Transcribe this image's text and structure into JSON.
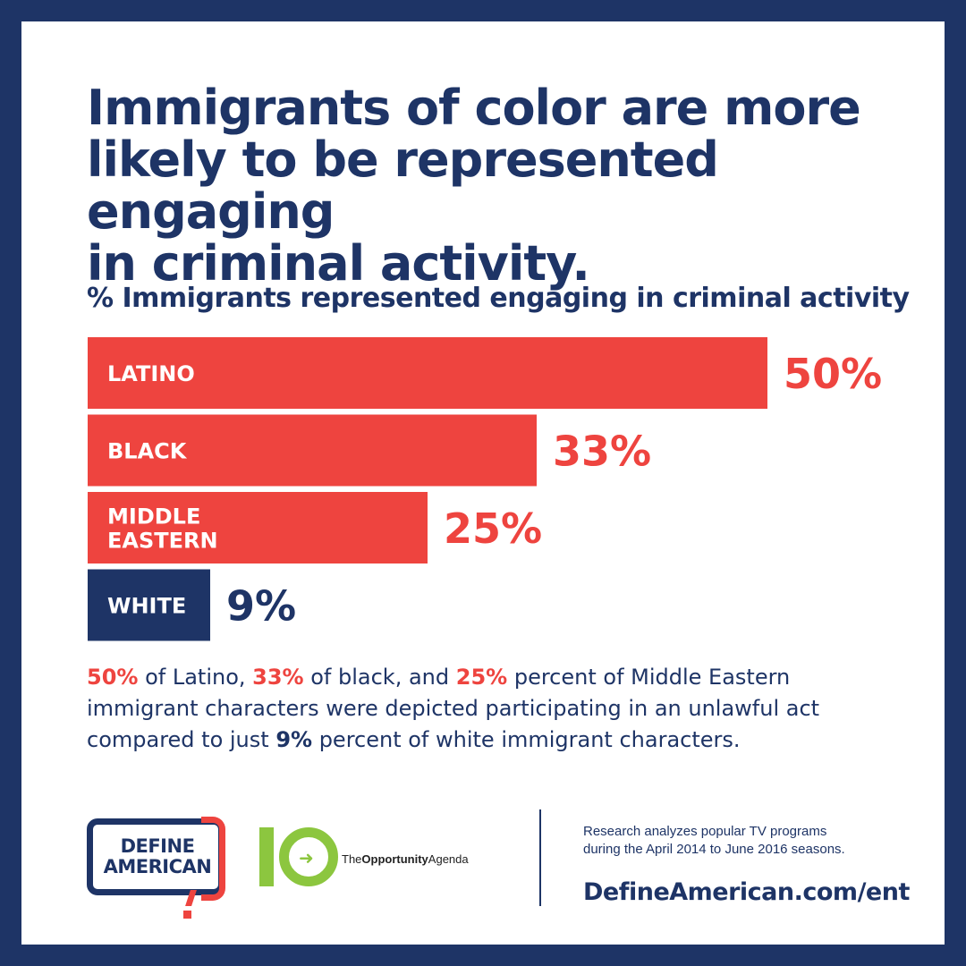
{
  "headline": {
    "line1": "Immigrants of color are more",
    "line2": "likely to be represented engaging",
    "line3": "in criminal activity."
  },
  "colors": {
    "navy": "#1e3466",
    "red": "#ee443f",
    "green": "#8cc63f",
    "white": "#ffffff"
  },
  "chart_data": {
    "type": "bar",
    "orientation": "horizontal",
    "title": "% Immigrants represented engaging in criminal activity",
    "unit": "%",
    "xlim": [
      0,
      50
    ],
    "grid": false,
    "legend": "none",
    "categories": [
      {
        "name": "LATINO",
        "label_lines": [
          "LATINO"
        ],
        "value": 50,
        "label": "50%",
        "color": "#ee443f"
      },
      {
        "name": "BLACK",
        "label_lines": [
          "BLACK"
        ],
        "value": 33,
        "label": "33%",
        "color": "#ee443f"
      },
      {
        "name": "MIDDLE EASTERN",
        "label_lines": [
          "MIDDLE",
          "EASTERN"
        ],
        "value": 25,
        "label": "25%",
        "color": "#ee443f"
      },
      {
        "name": "WHITE",
        "label_lines": [
          "WHITE"
        ],
        "value": 9,
        "label": "9%",
        "color": "#1e3466"
      }
    ]
  },
  "summary": {
    "p1": "50%",
    "t1": " of Latino, ",
    "p2": "33%",
    "t2": " of black, and ",
    "p3": "25%",
    "t3": " percent of Middle Eastern immigrant characters were depicted participating in an unlawful act compared to just ",
    "p4": "9%",
    "t4": " percent of white immigrant characters."
  },
  "footer": {
    "define_american_logo": {
      "word1": "DEFINE",
      "word2": "AMERICAN"
    },
    "opportunity_agenda_logo": {
      "the": "The",
      "opportunity": "Opportunity",
      "agenda": "Agenda",
      "icon": "ten-arrow-icon"
    },
    "research_note_line1": "Research analyzes popular TV programs",
    "research_note_line2": "during the April 2014 to June 2016 seasons.",
    "url": "DefineAmerican.com/ent"
  }
}
